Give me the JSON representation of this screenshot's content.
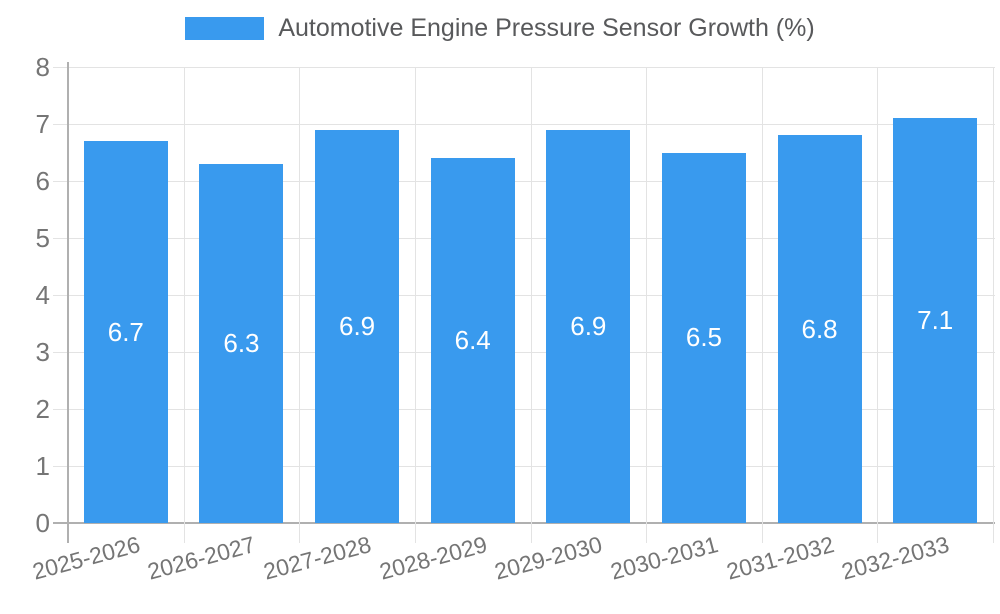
{
  "legend": {
    "items": [
      {
        "label": "Automotive Engine Pressure Sensor Growth (%)",
        "color": "#399AEE"
      }
    ],
    "position": "top"
  },
  "chart_data": {
    "type": "bar",
    "title": "Automotive Engine Pressure Sensor Growth (%)",
    "categories": [
      "2025-2026",
      "2026-2027",
      "2027-2028",
      "2028-2029",
      "2029-2030",
      "2030-2031",
      "2031-2032",
      "2032-2033"
    ],
    "values": [
      6.7,
      6.3,
      6.9,
      6.4,
      6.9,
      6.5,
      6.8,
      7.1
    ],
    "value_labels": [
      "6.7",
      "6.3",
      "6.9",
      "6.4",
      "6.9",
      "6.5",
      "6.8",
      "7.1"
    ],
    "xlabel": "",
    "ylabel": "",
    "ylim": [
      0,
      8
    ],
    "yticks": [
      0,
      1,
      2,
      3,
      4,
      5,
      6,
      7,
      8
    ],
    "grid": true,
    "legend_position": "top",
    "colors": {
      "bar": "#399AEE",
      "bar_value_text": "#ffffff",
      "grid": "#e3e3e3",
      "axis": "#b0b0b0",
      "tick_text": "#757575",
      "legend_text": "#58595b",
      "background": "#ffffff"
    }
  }
}
